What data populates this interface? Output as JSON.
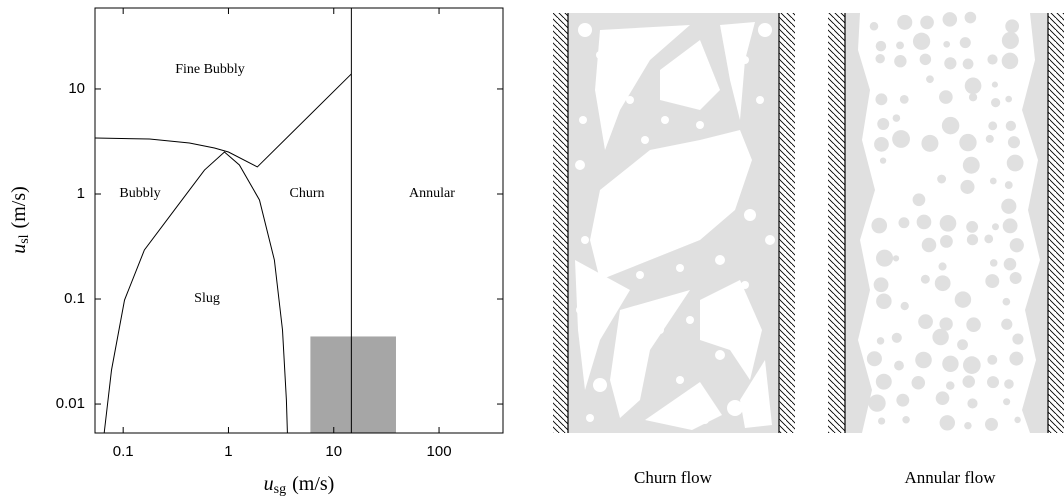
{
  "chart_data": {
    "type": "line",
    "xscale": "log",
    "yscale": "log",
    "xlim": [
      0.054,
      405
    ],
    "ylim": [
      0.0053,
      59
    ],
    "xticks": [
      0.1,
      1,
      10,
      100
    ],
    "yticks": [
      0.01,
      0.1,
      1,
      10
    ],
    "grid": false,
    "xlabel": {
      "symbol": "u",
      "subscript": "sg",
      "unit": "(m/s)"
    },
    "ylabel": {
      "symbol": "u",
      "subscript": "sl",
      "unit": "(m/s)"
    },
    "line_color": "#000000",
    "boundaries": [
      {
        "x": [
          0.054,
          0.178,
          0.426,
          0.736,
          1,
          1.88,
          14.7
        ],
        "values": [
          3.41,
          3.34,
          3.06,
          2.74,
          2.51,
          1.81,
          13.9
        ]
      },
      {
        "x": [
          0.066,
          0.0775,
          0.103,
          0.159,
          0.307,
          0.592,
          0.916,
          1.27,
          1.97,
          2.73,
          3.26,
          3.55,
          3.63
        ],
        "values": [
          0.0053,
          0.0211,
          0.0978,
          0.293,
          0.705,
          1.69,
          2.51,
          1.89,
          0.877,
          0.235,
          0.0507,
          0.0109,
          0.0053
        ]
      }
    ],
    "vline": 14.7,
    "shaded_region": {
      "xrange": [
        6,
        39
      ],
      "ymax": 0.044,
      "color": "#a6a6a6"
    },
    "annotations": [
      "Fine Bubbly",
      "Bubbly",
      "Churn",
      "Annular",
      "Slug"
    ]
  },
  "diagrams": [
    {
      "caption": "Churn flow"
    },
    {
      "caption": "Annular flow"
    }
  ]
}
